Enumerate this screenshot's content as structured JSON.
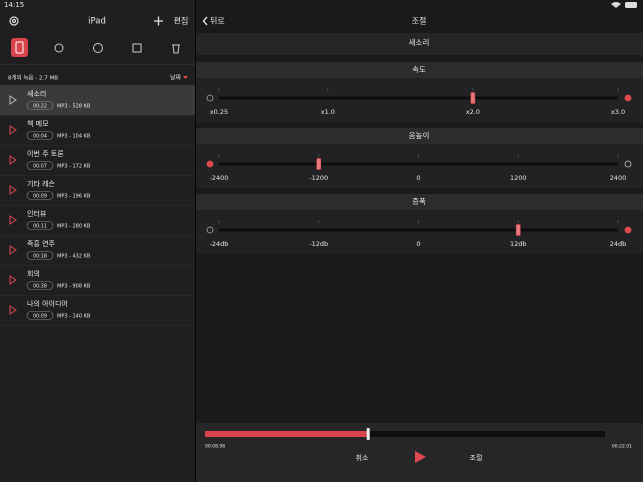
{
  "status_bar": {
    "time": "14:15"
  },
  "sidebar": {
    "title": "iPad",
    "edit": "편집",
    "summary": "8개의 녹음 - 2.7 MB",
    "sort": "날짜",
    "selected": 0,
    "recordings": [
      {
        "title": "새소리",
        "duration": "00:22",
        "info": "MP3 - 528 KB"
      },
      {
        "title": "책 메모",
        "duration": "00:04",
        "info": "MP3 - 104 KB"
      },
      {
        "title": "이번 주 토론",
        "duration": "00:07",
        "info": "MP3 - 172 KB"
      },
      {
        "title": "기타 레슨",
        "duration": "00:09",
        "info": "MP3 - 196 KB"
      },
      {
        "title": "인터뷰",
        "duration": "00:11",
        "info": "MP3 - 280 KB"
      },
      {
        "title": "즉흥 연주",
        "duration": "00:18",
        "info": "MP3 - 432 KB"
      },
      {
        "title": "회의",
        "duration": "00:38",
        "info": "MP3 - 908 KB"
      },
      {
        "title": "나의 아이디어",
        "duration": "00:09",
        "info": "MP3 - 140 KB"
      }
    ]
  },
  "detail": {
    "back": "뒤로",
    "title": "조절",
    "recording": "새소리",
    "sliders": [
      {
        "title": "속도",
        "lim": [
          0.25,
          3
        ],
        "value": 2,
        "ticks": [
          {
            "value": 0.25,
            "label": "x0.25"
          },
          {
            "value": 1,
            "label": "x1.0"
          },
          {
            "value": 2,
            "label": "x2.0"
          },
          {
            "value": 3,
            "label": "x3.0"
          }
        ]
      },
      {
        "title": "음높이",
        "lim": [
          -2400,
          2400
        ],
        "value": -1200,
        "ticks": [
          -2400,
          -1200,
          0,
          1200,
          2400
        ]
      },
      {
        "title": "증폭",
        "lim": [
          -24,
          24
        ],
        "value": 12,
        "ticks": [
          {
            "value": -24,
            "label": "-24db"
          },
          {
            "value": -12,
            "label": "-12db"
          },
          0,
          {
            "value": 12,
            "label": "12db"
          },
          {
            "value": 24,
            "label": "24db"
          }
        ]
      }
    ],
    "player": {
      "elapsed": "00:08.98",
      "total": "00:22.01",
      "cancel": "취소",
      "apply": "조절"
    }
  }
}
